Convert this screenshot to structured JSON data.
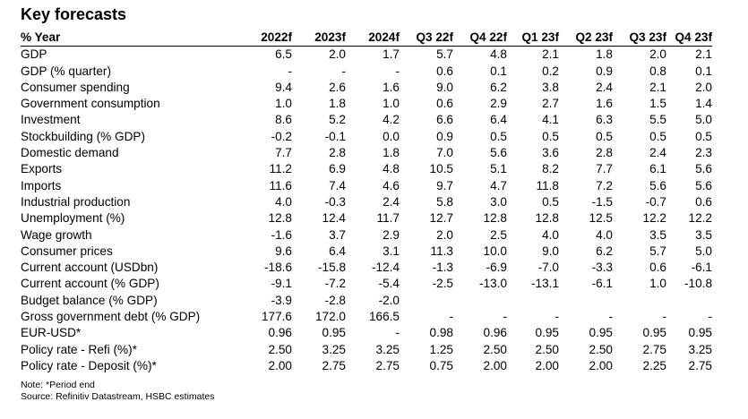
{
  "title": "Key forecasts",
  "header": [
    "% Year",
    "2022f",
    "2023f",
    "2024f",
    "Q3 22f",
    "Q4 22f",
    "Q1 23f",
    "Q2 23f",
    "Q3 23f",
    "Q4 23f"
  ],
  "rows": [
    [
      "GDP",
      "6.5",
      "2.0",
      "1.7",
      "5.7",
      "4.8",
      "2.1",
      "1.8",
      "2.0",
      "2.1"
    ],
    [
      "GDP (% quarter)",
      "-",
      "-",
      "-",
      "0.6",
      "0.1",
      "0.2",
      "0.9",
      "0.8",
      "0.1"
    ],
    [
      "Consumer spending",
      "9.4",
      "2.6",
      "1.6",
      "9.0",
      "6.2",
      "3.8",
      "2.4",
      "2.1",
      "2.0"
    ],
    [
      "Government consumption",
      "1.0",
      "1.8",
      "1.0",
      "0.6",
      "2.9",
      "2.7",
      "1.6",
      "1.5",
      "1.4"
    ],
    [
      "Investment",
      "8.6",
      "5.2",
      "4.2",
      "6.6",
      "6.4",
      "4.1",
      "6.3",
      "5.5",
      "5.0"
    ],
    [
      "Stockbuilding (% GDP)",
      "-0.2",
      "-0.1",
      "0.0",
      "0.9",
      "0.5",
      "0.5",
      "0.5",
      "0.5",
      "0.5"
    ],
    [
      "Domestic demand",
      "7.7",
      "2.8",
      "1.8",
      "7.0",
      "5.6",
      "3.6",
      "2.8",
      "2.4",
      "2.3"
    ],
    [
      "Exports",
      "11.2",
      "6.9",
      "4.8",
      "10.5",
      "5.1",
      "8.2",
      "7.7",
      "6.1",
      "5.6"
    ],
    [
      "Imports",
      "11.6",
      "7.4",
      "4.6",
      "9.7",
      "4.7",
      "11.8",
      "7.2",
      "5.6",
      "5.6"
    ],
    [
      "Industrial production",
      "4.0",
      "-0.3",
      "2.4",
      "5.8",
      "3.0",
      "0.5",
      "-1.5",
      "-0.7",
      "0.6"
    ],
    [
      "Unemployment (%)",
      "12.8",
      "12.4",
      "11.7",
      "12.7",
      "12.8",
      "12.8",
      "12.5",
      "12.2",
      "12.2"
    ],
    [
      "Wage growth",
      "-1.6",
      "3.7",
      "2.9",
      "2.0",
      "2.5",
      "4.0",
      "4.0",
      "3.5",
      "3.5"
    ],
    [
      "Consumer prices",
      "9.6",
      "6.4",
      "3.1",
      "11.3",
      "10.0",
      "9.0",
      "6.2",
      "5.7",
      "5.0"
    ],
    [
      "Current account (USDbn)",
      "-18.6",
      "-15.8",
      "-12.4",
      "-1.3",
      "-6.9",
      "-7.0",
      "-3.3",
      "0.6",
      "-6.1"
    ],
    [
      "Current account (% GDP)",
      "-9.1",
      "-7.2",
      "-5.4",
      "-2.5",
      "-13.0",
      "-13.1",
      "-6.1",
      "1.0",
      "-10.8"
    ],
    [
      "Budget balance (% GDP)",
      "-3.9",
      "-2.8",
      "-2.0",
      "",
      "",
      "",
      "",
      "",
      ""
    ],
    [
      "Gross government debt (% GDP)",
      "177.6",
      "172.0",
      "166.5",
      "-",
      "-",
      "-",
      "-",
      "-",
      "-"
    ],
    [
      "EUR-USD*",
      "0.96",
      "0.95",
      "-",
      "0.98",
      "0.96",
      "0.95",
      "0.95",
      "0.95",
      "0.95"
    ],
    [
      "Policy rate - Refi (%)*",
      "2.50",
      "3.25",
      "3.25",
      "1.25",
      "2.50",
      "2.50",
      "2.50",
      "2.75",
      "3.25"
    ],
    [
      "Policy rate - Deposit (%)*",
      "2.00",
      "2.75",
      "2.75",
      "0.75",
      "2.00",
      "2.00",
      "2.00",
      "2.25",
      "2.75"
    ]
  ],
  "notes": [
    "Note: *Period end",
    "Source: Refinitiv Datastream, HSBC estimates"
  ]
}
